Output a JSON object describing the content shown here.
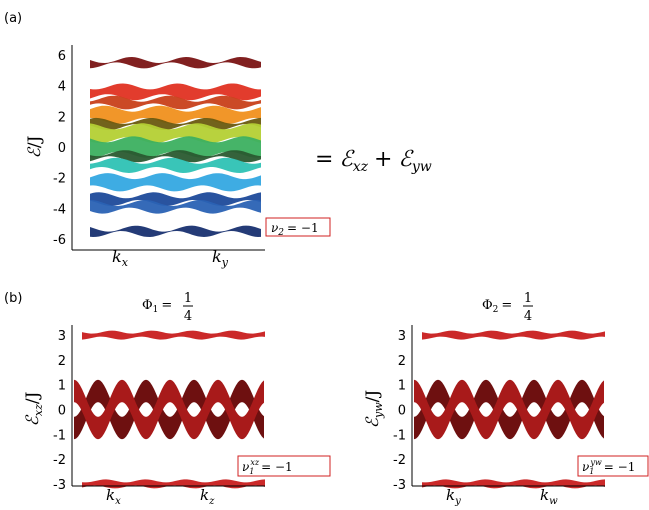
{
  "panel_a": {
    "label": "(a)",
    "y_label": {
      "base": "ℰ",
      "rest": "/J"
    },
    "yticks": [
      6,
      4,
      2,
      0,
      -2,
      -4,
      -6
    ],
    "x_labels": [
      {
        "base": "k",
        "sub": "x"
      },
      {
        "base": "k",
        "sub": "y"
      }
    ],
    "annotation": {
      "base": "ν",
      "sub": "2",
      "rhs": "= −1"
    },
    "equation": {
      "eq": "=",
      "terms": [
        {
          "base": "ℰ",
          "sub": "xz"
        },
        {
          "base": "ℰ",
          "sub": "yw"
        }
      ],
      "op": "+"
    }
  },
  "panel_b": {
    "label": "(b)",
    "plots": [
      {
        "title": {
          "base": "Φ",
          "sub": "1",
          "eq": "=",
          "num": "1",
          "den": "4"
        },
        "y_label": {
          "base": "ℰ",
          "sub": "xz",
          "rest": "/J"
        },
        "yticks": [
          3,
          2,
          1,
          0,
          -1,
          -2,
          -3
        ],
        "x_labels": [
          {
            "base": "k",
            "sub": "x"
          },
          {
            "base": "k",
            "sub": "z"
          }
        ],
        "annotation": {
          "base": "ν",
          "sub": "1",
          "sup": "xz",
          "rhs": "= −1"
        }
      },
      {
        "title": {
          "base": "Φ",
          "sub": "2",
          "eq": "=",
          "num": "1",
          "den": "4"
        },
        "y_label": {
          "base": "ℰ",
          "sub": "yw",
          "rest": "/J"
        },
        "yticks": [
          3,
          2,
          1,
          0,
          -1,
          -2,
          -3
        ],
        "x_labels": [
          {
            "base": "k",
            "sub": "y"
          },
          {
            "base": "k",
            "sub": "w"
          }
        ],
        "annotation": {
          "base": "ν",
          "sub": "1",
          "sup": "yw",
          "rhs": "= −1"
        }
      }
    ]
  }
}
